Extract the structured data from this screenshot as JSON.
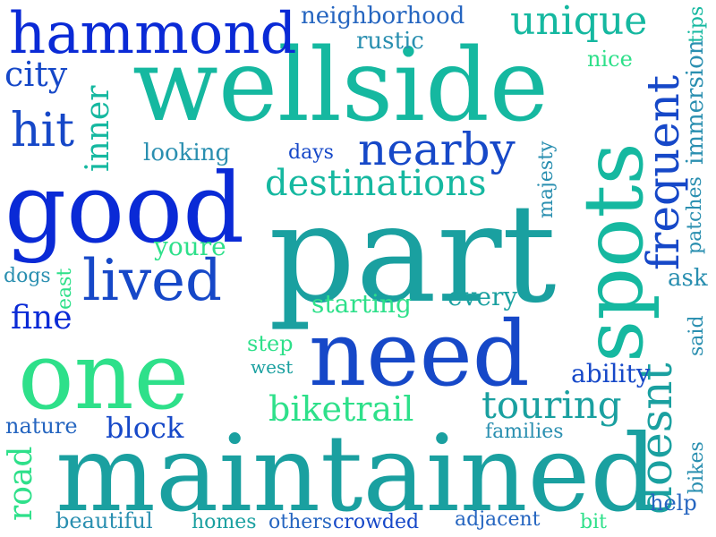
{
  "palette": {
    "deep_blue": "#0a2ad6",
    "royal_blue": "#1648c8",
    "teal": "#1aa0a0",
    "turquoise": "#15b8a0",
    "mint": "#2ee08a",
    "steel_teal": "#2a8fb0",
    "cerulean": "#2565c0",
    "background": "#ffffff"
  },
  "words": [
    {
      "text": "part"
    },
    {
      "text": "maintained"
    },
    {
      "text": "wellside"
    },
    {
      "text": "good"
    },
    {
      "text": "one"
    },
    {
      "text": "need"
    },
    {
      "text": "spots"
    },
    {
      "text": "hammond"
    },
    {
      "text": "lived"
    },
    {
      "text": "nearby"
    },
    {
      "text": "frequent"
    },
    {
      "text": "doesnt"
    },
    {
      "text": "unique"
    },
    {
      "text": "destinations"
    },
    {
      "text": "hit"
    },
    {
      "text": "touring"
    },
    {
      "text": "biketrail"
    },
    {
      "text": "city"
    },
    {
      "text": "inner"
    },
    {
      "text": "fine"
    },
    {
      "text": "road"
    },
    {
      "text": "block"
    },
    {
      "text": "neighborhood"
    },
    {
      "text": "rustic"
    },
    {
      "text": "nice"
    },
    {
      "text": "tips"
    },
    {
      "text": "immersion"
    },
    {
      "text": "looking"
    },
    {
      "text": "days"
    },
    {
      "text": "majesty"
    },
    {
      "text": "patches"
    },
    {
      "text": "youre"
    },
    {
      "text": "dogs"
    },
    {
      "text": "east"
    },
    {
      "text": "starting"
    },
    {
      "text": "every"
    },
    {
      "text": "ask"
    },
    {
      "text": "step"
    },
    {
      "text": "west"
    },
    {
      "text": "said"
    },
    {
      "text": "ability"
    },
    {
      "text": "nature"
    },
    {
      "text": "families"
    },
    {
      "text": "bikes"
    },
    {
      "text": "help"
    },
    {
      "text": "beautiful"
    },
    {
      "text": "homes"
    },
    {
      "text": "others"
    },
    {
      "text": "crowded"
    },
    {
      "text": "adjacent"
    },
    {
      "text": "bit"
    }
  ]
}
